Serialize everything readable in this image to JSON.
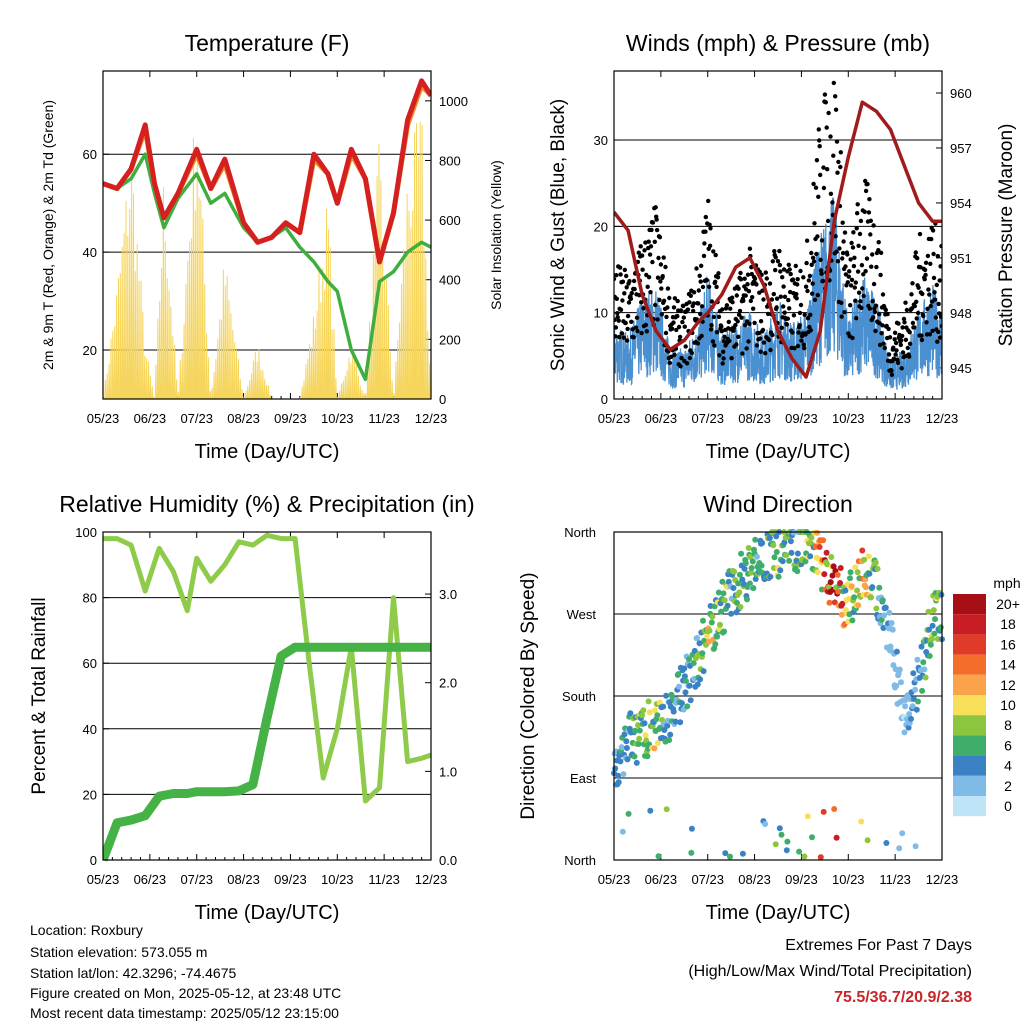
{
  "charts_meta": {
    "x_ticks": [
      "05/23",
      "06/23",
      "07/23",
      "08/23",
      "09/23",
      "10/23",
      "11/23",
      "12/23"
    ],
    "x_label": "Time (Day/UTC)"
  },
  "chart_data": [
    {
      "id": "temperature",
      "type": "line",
      "title": "Temperature (F)",
      "xlabel": "Time (Day/UTC)",
      "ylabel": "2m & 9m T (Red, Orange) & 2m Td (Green)",
      "ylabel_right": "Solar Insolation (Yellow)",
      "ylim": [
        10,
        77
      ],
      "ylim_right": [
        0,
        1100
      ],
      "y_ticks": [
        20,
        40,
        60
      ],
      "y_ticks_right": [
        0,
        200,
        400,
        600,
        800,
        1000
      ],
      "categories": [
        "05/23",
        "06/23",
        "07/23",
        "08/23",
        "09/23",
        "10/23",
        "11/23",
        "12/23"
      ],
      "x": [
        0,
        0.3,
        0.6,
        0.9,
        1.1,
        1.3,
        1.6,
        2.0,
        2.3,
        2.6,
        3.0,
        3.3,
        3.6,
        3.9,
        4.2,
        4.5,
        4.8,
        5.0,
        5.3,
        5.6,
        5.9,
        6.2,
        6.5,
        6.8,
        7.0
      ],
      "series": [
        {
          "name": "2m T",
          "color": "#d42020",
          "values": [
            54,
            53,
            57,
            66,
            54,
            47,
            52,
            61,
            53,
            59,
            46,
            42,
            43,
            46,
            44,
            60,
            56,
            50,
            61,
            55,
            38,
            48,
            67,
            75,
            72
          ]
        },
        {
          "name": "9m T",
          "color": "#f28c28",
          "values": [
            54,
            53,
            57,
            65,
            54,
            47,
            52,
            60,
            53,
            58,
            46,
            42,
            43,
            46,
            44,
            59,
            56,
            50,
            60,
            55,
            38,
            48,
            66,
            74,
            72
          ]
        },
        {
          "name": "2m Td",
          "color": "#3fae3f",
          "values": [
            54,
            53,
            55,
            60,
            52,
            45,
            51,
            56,
            50,
            52,
            45,
            42,
            43,
            45,
            41,
            38,
            34,
            32,
            20,
            14,
            34,
            36,
            40,
            42,
            41
          ]
        },
        {
          "name": "Solar Insolation",
          "color": "#f6d55c",
          "axis": "right",
          "values": [
            0,
            400,
            900,
            200,
            0,
            800,
            0,
            1100,
            0,
            500,
            0,
            200,
            0,
            0,
            0,
            300,
            700,
            0,
            200,
            0,
            900,
            0,
            800,
            1000,
            0
          ]
        }
      ]
    },
    {
      "id": "winds",
      "type": "scatter",
      "title": "Winds (mph) & Pressure (mb)",
      "xlabel": "Time (Day/UTC)",
      "ylabel": "Sonic Wind & Gust (Blue, Black)",
      "ylabel_right": "Station Pressure (Maroon)",
      "ylim": [
        0,
        38
      ],
      "ylim_right": [
        943.3,
        961.2
      ],
      "y_ticks": [
        0,
        10,
        20,
        30
      ],
      "y_ticks_right": [
        945,
        948,
        951,
        954,
        957,
        960
      ],
      "categories": [
        "05/23",
        "06/23",
        "07/23",
        "08/23",
        "09/23",
        "10/23",
        "11/23",
        "12/23"
      ],
      "x": [
        0,
        0.3,
        0.6,
        0.9,
        1.2,
        1.5,
        1.8,
        2.0,
        2.3,
        2.6,
        2.9,
        3.2,
        3.5,
        3.8,
        4.1,
        4.4,
        4.7,
        5.0,
        5.3,
        5.6,
        5.9,
        6.2,
        6.5,
        6.8,
        7.0
      ],
      "series": [
        {
          "name": "Gust",
          "color": "#000000",
          "values": [
            12,
            11,
            14,
            17,
            9,
            8,
            12,
            18,
            9,
            10,
            13,
            11,
            14,
            11,
            13,
            25,
            30,
            12,
            20,
            16,
            6,
            8,
            14,
            16,
            13
          ]
        },
        {
          "name": "Sonic Wind",
          "color": "#4a90d0",
          "values": [
            6,
            5,
            8,
            9,
            4,
            4,
            6,
            10,
            5,
            6,
            7,
            5,
            8,
            6,
            7,
            13,
            16,
            6,
            10,
            8,
            3,
            4,
            7,
            9,
            7
          ]
        },
        {
          "name": "Station Pressure",
          "color": "#a01c1c",
          "axis": "right",
          "values": [
            953.5,
            952.5,
            949,
            947,
            946,
            946.5,
            947.5,
            948,
            949,
            950.5,
            951,
            949.5,
            947,
            945.5,
            944.5,
            947,
            953,
            956.5,
            959.5,
            959,
            958,
            956,
            954,
            953,
            953
          ]
        }
      ]
    },
    {
      "id": "humidity",
      "type": "line",
      "title": "Relative Humidity (%) & Precipitation (in)",
      "xlabel": "Time (Day/UTC)",
      "ylabel": "Percent & Total Rainfall",
      "ylim": [
        0,
        100
      ],
      "ylim_right": [
        0,
        3.7
      ],
      "y_ticks": [
        0,
        20,
        40,
        60,
        80,
        100
      ],
      "y_ticks_right": [
        0.0,
        1.0,
        2.0,
        3.0
      ],
      "y_tick_labels_right": [
        "0.0",
        "1.0",
        "2.0",
        "3.0"
      ],
      "categories": [
        "05/23",
        "06/23",
        "07/23",
        "08/23",
        "09/23",
        "10/23",
        "11/23",
        "12/23"
      ],
      "x": [
        0,
        0.3,
        0.6,
        0.9,
        1.2,
        1.5,
        1.8,
        2.0,
        2.3,
        2.6,
        2.9,
        3.2,
        3.5,
        3.8,
        4.1,
        4.4,
        4.7,
        5.0,
        5.3,
        5.6,
        5.9,
        6.2,
        6.5,
        6.8,
        7.0
      ],
      "series": [
        {
          "name": "Relative Humidity",
          "color": "#8fcb4a",
          "values": [
            98,
            98,
            96,
            82,
            95,
            88,
            76,
            92,
            85,
            90,
            97,
            96,
            99,
            98,
            98,
            60,
            25,
            40,
            65,
            18,
            22,
            80,
            30,
            31,
            32
          ]
        },
        {
          "name": "Total Rainfall",
          "color": "#45b245",
          "axis": "right",
          "values": [
            0,
            0.42,
            0.45,
            0.5,
            0.72,
            0.75,
            0.75,
            0.77,
            0.77,
            0.77,
            0.78,
            0.85,
            1.6,
            2.3,
            2.4,
            2.4,
            2.4,
            2.4,
            2.4,
            2.4,
            2.4,
            2.4,
            2.4,
            2.4,
            2.4
          ]
        }
      ]
    },
    {
      "id": "wind_direction",
      "type": "scatter",
      "title": "Wind Direction",
      "xlabel": "Time (Day/UTC)",
      "ylabel": "Direction (Colored By Speed)",
      "y_categories": [
        "North",
        "East",
        "South",
        "West",
        "North"
      ],
      "ylim": [
        0,
        360
      ],
      "categories": [
        "05/23",
        "06/23",
        "07/23",
        "08/23",
        "09/23",
        "10/23",
        "11/23",
        "12/23"
      ],
      "x": [
        0,
        0.3,
        0.6,
        0.9,
        1.2,
        1.5,
        1.8,
        2.0,
        2.3,
        2.6,
        2.9,
        3.2,
        3.5,
        3.8,
        4.1,
        4.4,
        4.7,
        5.0,
        5.3,
        5.6,
        5.9,
        6.2,
        6.5,
        6.8,
        7.0
      ],
      "values": [
        90,
        130,
        140,
        150,
        160,
        190,
        220,
        250,
        275,
        300,
        320,
        335,
        340,
        345,
        350,
        330,
        300,
        280,
        320,
        300,
        240,
        150,
        200,
        260,
        270
      ],
      "speeds": [
        4,
        5,
        8,
        9,
        5,
        4,
        6,
        9,
        8,
        6,
        7,
        5,
        8,
        6,
        7,
        13,
        19,
        9,
        12,
        6,
        3,
        2,
        5,
        8,
        6
      ],
      "legend": {
        "title": "mph",
        "labels": [
          "20+",
          "18",
          "16",
          "14",
          "12",
          "10",
          "8",
          "6",
          "4",
          "2",
          "0"
        ],
        "colors": [
          "#a50f15",
          "#c81d25",
          "#e03a2a",
          "#f46d2b",
          "#fba34a",
          "#f8df5a",
          "#8cc63f",
          "#3fae6a",
          "#3a82c4",
          "#7fbbe6",
          "#bfe3f7"
        ]
      }
    }
  ],
  "info": {
    "location": "Location: Roxbury",
    "elevation": "Station elevation: 573.055 m",
    "latlon": "Station lat/lon: 42.3296; -74.4675",
    "created": "Figure created on Mon, 2025-05-12, at 23:48 UTC",
    "timestamp": "Most recent data timestamp: 2025/05/12 23:15:00"
  },
  "extremes": {
    "title": "Extremes For Past 7 Days",
    "subtitle": "(High/Low/Max Wind/Total Precipitation)",
    "values": "75.5/36.7/20.9/2.38"
  }
}
